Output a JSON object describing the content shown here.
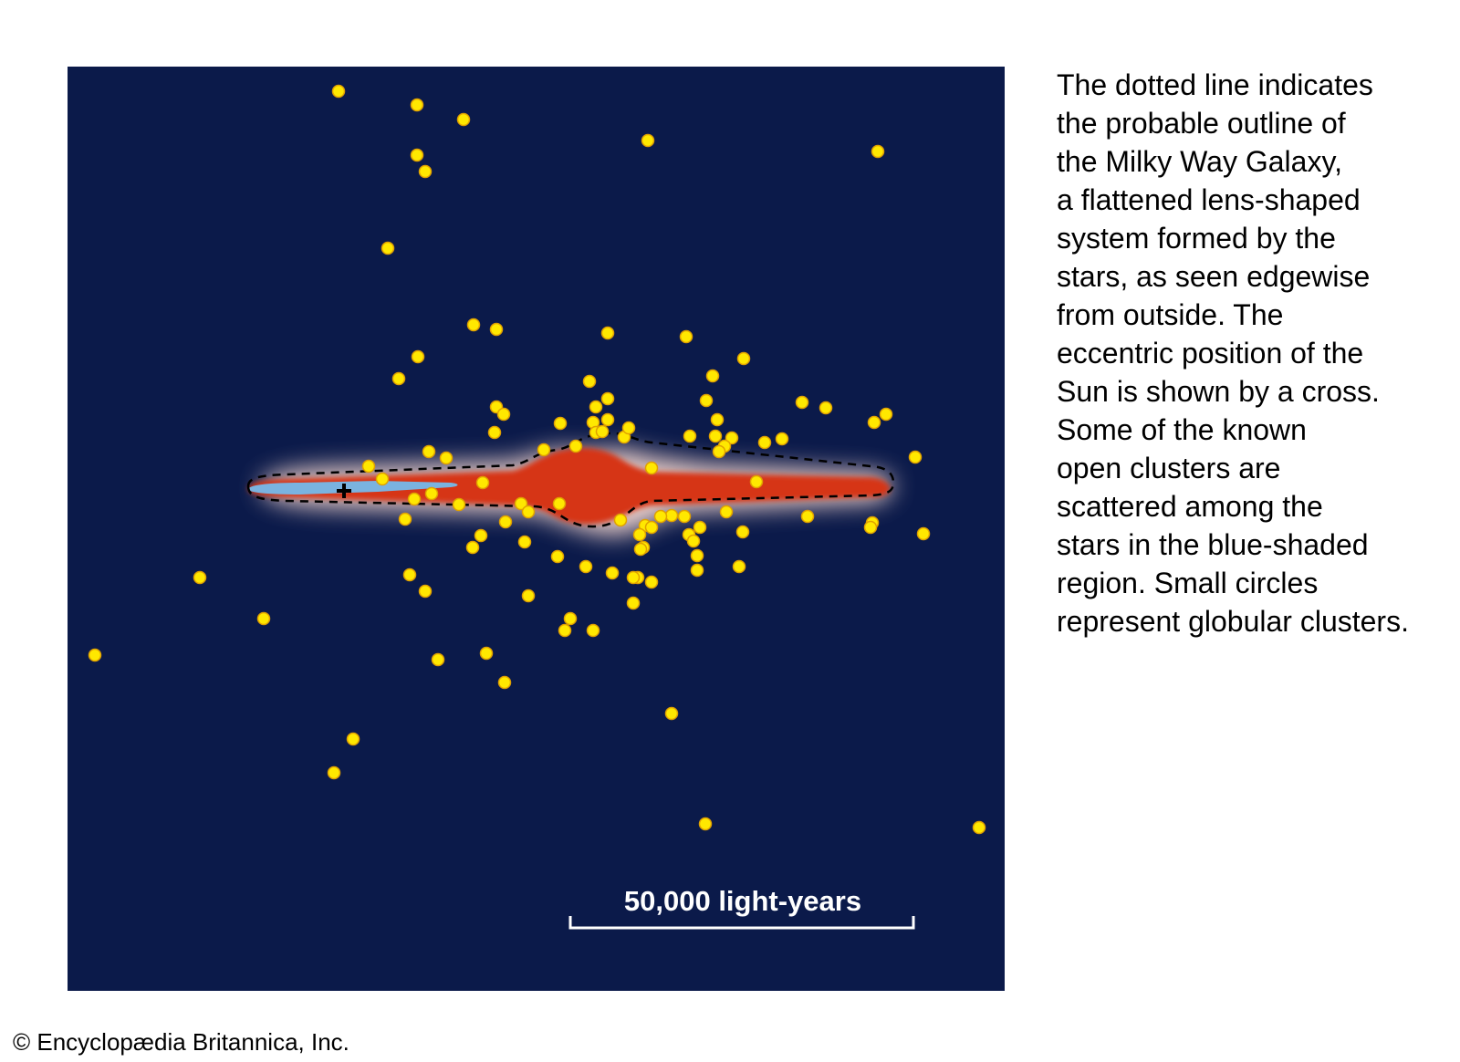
{
  "figure": {
    "background_color": "#0b1a4a",
    "galaxy_color": "#d63412",
    "halo_color": "#f4d7cf",
    "sun_region_color": "#7ab3e0",
    "cluster_color": "#ffe800",
    "cluster_stroke": "#e0a000",
    "sun_marker": "cross",
    "outline_style": "dashed",
    "scale_bar_label": "50,000 light-years",
    "cluster_count": 108
  },
  "caption": {
    "lines": [
      "The dotted line indicates",
      "the probable outline of",
      "the Milky Way Galaxy,",
      "a flattened lens-shaped",
      "system formed by the",
      "stars, as seen edgewise",
      "from outside.  The",
      "eccentric position of the",
      "Sun is shown by a cross.",
      "Some of the known",
      "open clusters are",
      "scattered among the",
      "stars in the blue-shaded",
      "region.  Small circles",
      "represent globular clusters."
    ]
  },
  "credit": "© Encyclopædia Britannica, Inc."
}
